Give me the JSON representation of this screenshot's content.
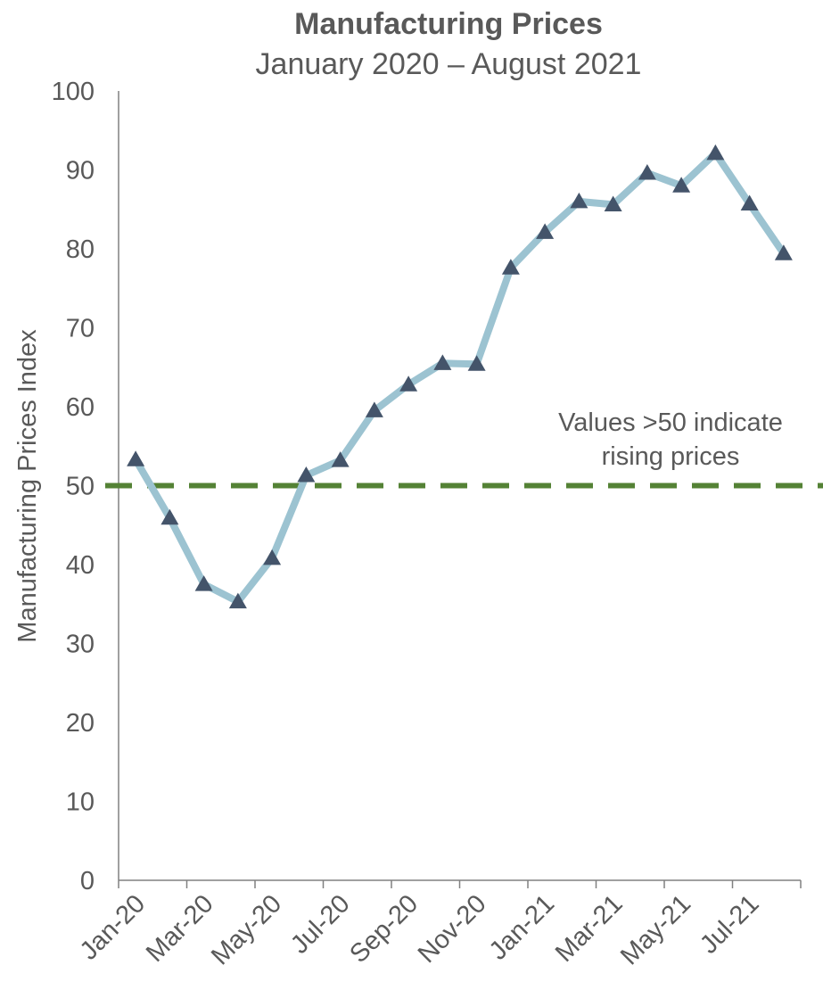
{
  "chart_data": {
    "type": "line",
    "title": "Manufacturing Prices",
    "subtitle": "January 2020 – August 2021",
    "xlabel": "",
    "ylabel": "Manufacturing Prices Index",
    "ylim": [
      0,
      100
    ],
    "yticks": [
      "0",
      "10",
      "20",
      "30",
      "40",
      "50",
      "60",
      "70",
      "80",
      "90",
      "100"
    ],
    "x": [
      "Jan-20",
      "Feb-20",
      "Mar-20",
      "Apr-20",
      "May-20",
      "Jun-20",
      "Jul-20",
      "Aug-20",
      "Sep-20",
      "Oct-20",
      "Nov-20",
      "Dec-20",
      "Jan-21",
      "Feb-21",
      "Mar-21",
      "Apr-21",
      "May-21",
      "Jun-21",
      "Jul-21",
      "Aug-21"
    ],
    "xtick_labels": [
      "Jan-20",
      "Mar-20",
      "May-20",
      "Jul-20",
      "Sep-20",
      "Nov-20",
      "Jan-21",
      "Mar-21",
      "May-21",
      "Jul-21"
    ],
    "series": [
      {
        "values": [
          53.3,
          45.9,
          37.5,
          35.3,
          40.8,
          51.3,
          53.2,
          59.5,
          62.8,
          65.5,
          65.4,
          77.6,
          82.1,
          86.0,
          85.6,
          89.6,
          88.0,
          92.1,
          85.7,
          79.4
        ]
      }
    ],
    "reference_line": {
      "value": 50,
      "style": "dashed"
    },
    "annotation": [
      "Values >50 indicate",
      "rising prices"
    ],
    "colors": {
      "line": "#9cc3d1",
      "marker": "#44546a",
      "reference": "#548235",
      "axis": "#808080",
      "text": "#595959"
    },
    "marker": "triangle",
    "grid": false,
    "legend": "none"
  }
}
